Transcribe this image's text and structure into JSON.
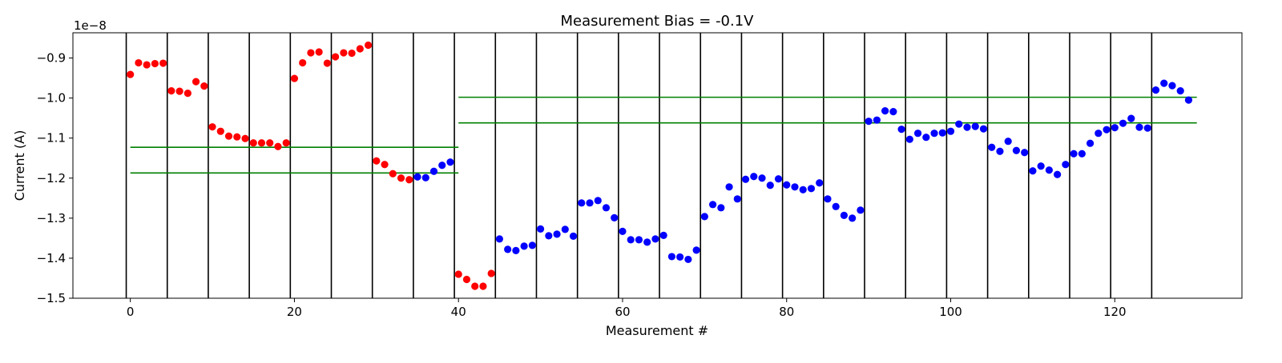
{
  "chart_data": {
    "type": "scatter",
    "title": "Measurement Bias = -0.1V",
    "xlabel": "Measurement #",
    "ylabel": "Current (A)",
    "y_offset_label": "1e−8",
    "y_scale": 1e-08,
    "xlim": [
      -7,
      135.5
    ],
    "ylim": [
      -1.5,
      -0.837
    ],
    "xticks": [
      0,
      20,
      40,
      60,
      80,
      100,
      120
    ],
    "yticks": [
      -1.5,
      -1.4,
      -1.3,
      -1.2,
      -1.1,
      -1.0,
      -0.9
    ],
    "ytick_labels": [
      "−1.5",
      "−1.4",
      "−1.3",
      "−1.2",
      "−1.1",
      "−1.0",
      "−0.9"
    ],
    "grid": false,
    "vertical_lines_x": [
      -0.5,
      4.5,
      9.5,
      14.5,
      19.5,
      24.5,
      29.5,
      34.5,
      39.5,
      44.5,
      49.5,
      54.5,
      59.5,
      64.5,
      69.5,
      74.5,
      79.5,
      84.5,
      89.5,
      94.5,
      99.5,
      104.5,
      109.5,
      114.5,
      119.5,
      124.5
    ],
    "horizontal_lines": [
      {
        "x": [
          0,
          40
        ],
        "y": -1.123,
        "color": "#008000"
      },
      {
        "x": [
          0,
          40
        ],
        "y": -1.187,
        "color": "#008000"
      },
      {
        "x": [
          40,
          130
        ],
        "y": -0.998,
        "color": "#008000"
      },
      {
        "x": [
          40,
          130
        ],
        "y": -1.062,
        "color": "#008000"
      }
    ],
    "series": [
      {
        "color": "#ff0000",
        "x": [
          0,
          1,
          2,
          3,
          4,
          5,
          6,
          7,
          8,
          9,
          10,
          11,
          12,
          13,
          14,
          15,
          16,
          17,
          18,
          19,
          20,
          21,
          22,
          23,
          24,
          25,
          26,
          27,
          28,
          29,
          30,
          31,
          32,
          33,
          34,
          40,
          41,
          42,
          43,
          44
        ],
        "y": [
          -0.941,
          -0.912,
          -0.917,
          -0.914,
          -0.913,
          -0.982,
          -0.983,
          -0.988,
          -0.959,
          -0.97,
          -1.072,
          -1.083,
          -1.095,
          -1.097,
          -1.101,
          -1.112,
          -1.112,
          -1.112,
          -1.121,
          -1.112,
          -0.951,
          -0.912,
          -0.887,
          -0.885,
          -0.913,
          -0.897,
          -0.887,
          -0.888,
          -0.877,
          -0.868,
          -1.157,
          -1.166,
          -1.189,
          -1.2,
          -1.204,
          -1.44,
          -1.453,
          -1.47,
          -1.47,
          -1.438
        ]
      },
      {
        "color": "#0000ff",
        "x": [
          35,
          36,
          37,
          38,
          39,
          45,
          46,
          47,
          48,
          49,
          50,
          51,
          52,
          53,
          54,
          55,
          56,
          57,
          58,
          59,
          60,
          61,
          62,
          63,
          64,
          65,
          66,
          67,
          68,
          69,
          70,
          71,
          72,
          73,
          74,
          75,
          76,
          77,
          78,
          79,
          80,
          81,
          82,
          83,
          84,
          85,
          86,
          87,
          88,
          89,
          90,
          91,
          92,
          93,
          94,
          95,
          96,
          97,
          98,
          99,
          100,
          101,
          102,
          103,
          104,
          105,
          106,
          107,
          108,
          109,
          110,
          111,
          112,
          113,
          114,
          115,
          116,
          117,
          118,
          119,
          120,
          121,
          122,
          123,
          124,
          125,
          126,
          127,
          128,
          129
        ],
        "y": [
          -1.197,
          -1.199,
          -1.183,
          -1.168,
          -1.16,
          -1.352,
          -1.378,
          -1.381,
          -1.37,
          -1.368,
          -1.327,
          -1.344,
          -1.34,
          -1.328,
          -1.345,
          -1.262,
          -1.262,
          -1.256,
          -1.274,
          -1.299,
          -1.333,
          -1.354,
          -1.354,
          -1.36,
          -1.352,
          -1.343,
          -1.396,
          -1.397,
          -1.403,
          -1.38,
          -1.296,
          -1.266,
          -1.274,
          -1.222,
          -1.252,
          -1.203,
          -1.196,
          -1.2,
          -1.218,
          -1.202,
          -1.217,
          -1.222,
          -1.229,
          -1.226,
          -1.212,
          -1.252,
          -1.271,
          -1.293,
          -1.3,
          -1.28,
          -1.058,
          -1.055,
          -1.032,
          -1.034,
          -1.078,
          -1.103,
          -1.088,
          -1.098,
          -1.088,
          -1.087,
          -1.083,
          -1.065,
          -1.073,
          -1.071,
          -1.077,
          -1.123,
          -1.133,
          -1.108,
          -1.131,
          -1.136,
          -1.182,
          -1.17,
          -1.18,
          -1.191,
          -1.166,
          -1.139,
          -1.139,
          -1.113,
          -1.088,
          -1.079,
          -1.074,
          -1.063,
          -1.051,
          -1.073,
          -1.075,
          -0.98,
          -0.963,
          -0.969,
          -0.982,
          -1.005
        ]
      }
    ]
  }
}
